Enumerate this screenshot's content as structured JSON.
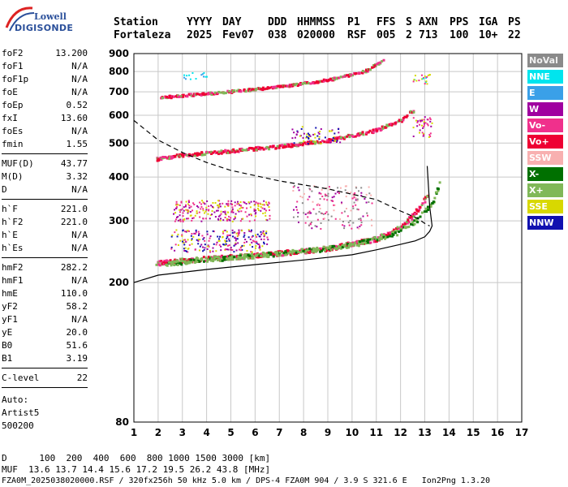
{
  "logo": {
    "line1": "Lowell",
    "line2": "DIGISONDE"
  },
  "header": {
    "labels": [
      "Station",
      "YYYY",
      "DAY",
      "DDD",
      "HHMMSS",
      "P1",
      "FFS",
      "S",
      "AXN",
      "PPS",
      "IGA",
      "PS"
    ],
    "values": [
      "Fortaleza",
      "2025",
      "Fev07",
      "038",
      "020000",
      "RSF",
      "005",
      "2",
      "713",
      "100",
      "10+",
      "22"
    ]
  },
  "params_group1": [
    {
      "k": "foF2",
      "v": "13.200"
    },
    {
      "k": "foF1",
      "v": "N/A"
    },
    {
      "k": "foF1p",
      "v": "N/A"
    },
    {
      "k": "foE",
      "v": "N/A"
    },
    {
      "k": "foEp",
      "v": "0.52"
    },
    {
      "k": "fxI",
      "v": "13.60"
    },
    {
      "k": "foEs",
      "v": "N/A"
    },
    {
      "k": "fmin",
      "v": "1.55"
    }
  ],
  "params_group2": [
    {
      "k": "MUF(D)",
      "v": "43.77"
    },
    {
      "k": "M(D)",
      "v": "3.32"
    },
    {
      "k": "D",
      "v": "N/A"
    }
  ],
  "params_group3": [
    {
      "k": "h`F",
      "v": "221.0"
    },
    {
      "k": "h`F2",
      "v": "221.0"
    },
    {
      "k": "h`E",
      "v": "N/A"
    },
    {
      "k": "h`Es",
      "v": "N/A"
    }
  ],
  "params_group4": [
    {
      "k": "hmF2",
      "v": "282.2"
    },
    {
      "k": "hmF1",
      "v": "N/A"
    },
    {
      "k": "hmE",
      "v": "110.0"
    },
    {
      "k": "yF2",
      "v": "58.2"
    },
    {
      "k": "yF1",
      "v": "N/A"
    },
    {
      "k": "yE",
      "v": "20.0"
    },
    {
      "k": "B0",
      "v": "51.6"
    },
    {
      "k": "B1",
      "v": "3.19"
    }
  ],
  "params_group5": [
    {
      "k": "C-level",
      "v": "22"
    }
  ],
  "auto": {
    "line1": "Auto:",
    "line2": "Artist5",
    "line3": "500200"
  },
  "legend": [
    {
      "label": "NoVal",
      "color": "#8a8a8a"
    },
    {
      "label": "NNE",
      "color": "#00e5ee"
    },
    {
      "label": "E",
      "color": "#3aa0e8"
    },
    {
      "label": "W",
      "color": "#a000a0"
    },
    {
      "label": "Vo-",
      "color": "#f0308c"
    },
    {
      "label": "Vo+",
      "color": "#ee0033"
    },
    {
      "label": "SSW",
      "color": "#f8b0b0"
    },
    {
      "label": "X-",
      "color": "#007000"
    },
    {
      "label": "X+",
      "color": "#80b858"
    },
    {
      "label": "SSE",
      "color": "#d8d800"
    },
    {
      "label": "NNW",
      "color": "#1010b0"
    }
  ],
  "footer": {
    "d_row": "D      100  200  400  600  800 1000 1500 3000 [km]",
    "muf_row": "MUF  13.6 13.7 14.4 15.6 17.2 19.5 26.2 43.8 [MHz]",
    "file_row": "FZA0M_2025038020000.RSF / 320fx256h 50 kHz 5.0 km / DPS-4 FZA0M 904 / 3.9 S 321.6 E   Ion2Png 1.3.20"
  },
  "chart_data": {
    "type": "scatter",
    "xlim": [
      1,
      17
    ],
    "ylim": [
      80,
      900
    ],
    "y_scale": "log",
    "x_ticks": [
      1,
      2,
      3,
      4,
      5,
      6,
      7,
      8,
      9,
      10,
      11,
      12,
      13,
      14,
      15,
      16,
      17
    ],
    "y_ticks": [
      80,
      200,
      300,
      400,
      500,
      600,
      700,
      800,
      900
    ],
    "grid": true,
    "traces": {
      "o_trace_1": {
        "f": [
          1.8,
          3,
          5,
          7,
          9,
          11,
          12,
          12.6,
          13.1
        ],
        "h": [
          228,
          233,
          238,
          244,
          252,
          268,
          290,
          318,
          360
        ]
      },
      "x_trace_1": {
        "f": [
          2.3,
          4,
          6,
          8,
          10,
          11.8,
          12.7,
          13.3,
          13.6
        ],
        "h": [
          228,
          234,
          240,
          247,
          258,
          278,
          305,
          340,
          390
        ]
      },
      "o_trace_2": {
        "f": [
          1.9,
          3,
          5,
          7,
          9,
          11,
          12,
          12.5
        ],
        "h": [
          453,
          465,
          478,
          492,
          512,
          548,
          585,
          625
        ]
      },
      "o_trace_3": {
        "f": [
          2.1,
          3,
          5,
          7,
          9,
          10.5,
          11.3
        ],
        "h": [
          678,
          688,
          706,
          728,
          762,
          805,
          870
        ]
      },
      "profile": {
        "f": [
          1,
          2,
          4,
          6,
          8,
          10,
          11,
          12,
          12.6,
          13,
          13.2,
          13.3,
          13.2,
          13.1
        ],
        "h": [
          200,
          210,
          218,
          225,
          232,
          240,
          248,
          257,
          263,
          270,
          280,
          290,
          330,
          430
        ]
      },
      "extrapolation": {
        "f": [
          1,
          2,
          3,
          4,
          5,
          7,
          9,
          11,
          12,
          12.7,
          13,
          13.2
        ],
        "h": [
          580,
          510,
          470,
          440,
          418,
          390,
          370,
          345,
          320,
          305,
          295,
          290
        ]
      }
    }
  }
}
